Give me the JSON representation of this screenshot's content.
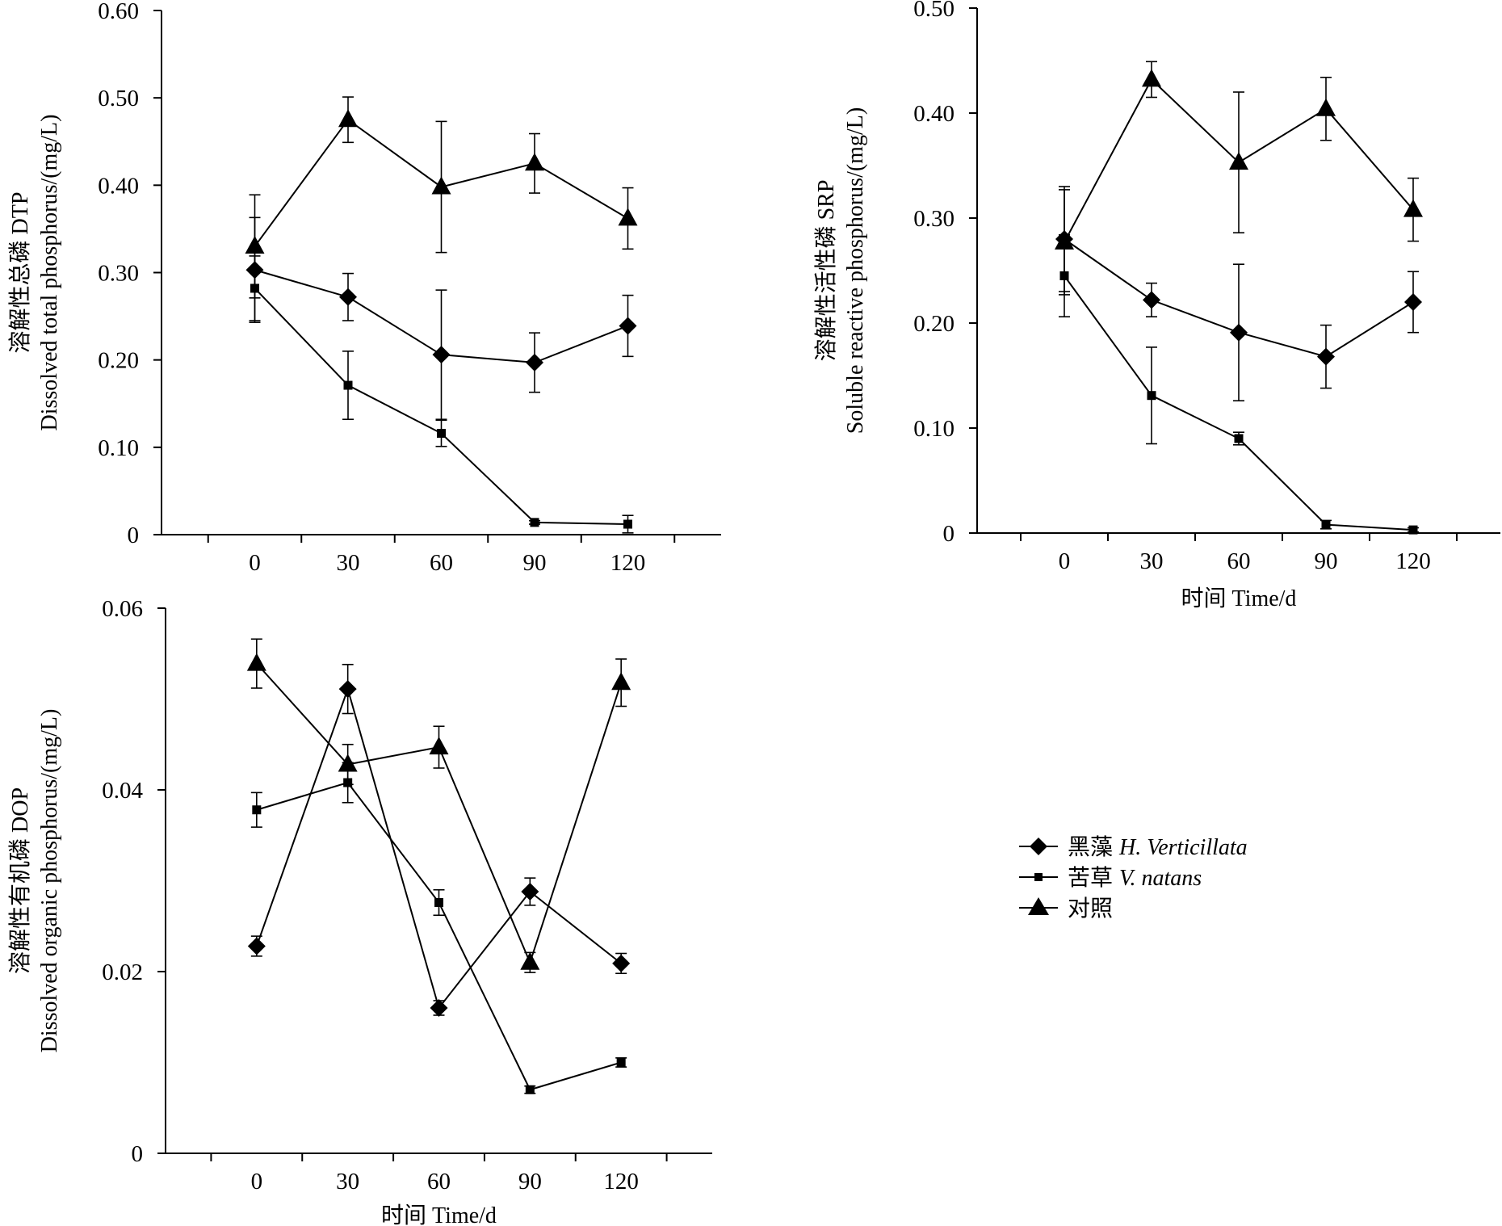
{
  "chart_data": [
    {
      "type": "line",
      "ylabel": "溶解性总磷 DTP",
      "ylabel2": "Dissolved total phosphorus/(mg/L)",
      "xlabel": "",
      "x": [
        0,
        30,
        60,
        90,
        120
      ],
      "xticks": [
        "0",
        "30",
        "60",
        "90",
        "120"
      ],
      "ylim": [
        0,
        0.6
      ],
      "yticks": [
        "0",
        "0.10",
        "0.20",
        "0.30",
        "0.40",
        "0.50",
        "0.60"
      ],
      "series": [
        {
          "name": "黑藻 H. Verticillata",
          "marker": "diamond",
          "values": [
            0.303,
            0.272,
            0.206,
            0.197,
            0.239
          ],
          "errors": [
            0.06,
            0.027,
            0.074,
            0.034,
            0.035
          ]
        },
        {
          "name": "苦草 V. natans",
          "marker": "square",
          "values": [
            0.282,
            0.171,
            0.116,
            0.014,
            0.012
          ],
          "errors": [
            0.037,
            0.039,
            0.015,
            0.002,
            0.01
          ]
        },
        {
          "name": "对照",
          "marker": "triangle",
          "values": [
            0.33,
            0.475,
            0.398,
            0.425,
            0.362
          ],
          "errors": [
            0.059,
            0.026,
            0.075,
            0.034,
            0.035
          ]
        }
      ]
    },
    {
      "type": "line",
      "ylabel": "溶解性活性磷 SRP",
      "ylabel2": "Soluble reactive phosphorus/(mg/L)",
      "xlabel": "时间 Time/d",
      "x": [
        0,
        30,
        60,
        90,
        120
      ],
      "xticks": [
        "0",
        "30",
        "60",
        "90",
        "120"
      ],
      "ylim": [
        0,
        0.5
      ],
      "yticks": [
        "0",
        "0.10",
        "0.20",
        "0.30",
        "0.40",
        "0.50"
      ],
      "series": [
        {
          "name": "黑藻 H. Verticillata",
          "marker": "diamond",
          "values": [
            0.28,
            0.222,
            0.191,
            0.168,
            0.22
          ],
          "errors": [
            0.05,
            0.016,
            0.065,
            0.03,
            0.029
          ]
        },
        {
          "name": "苦草 V. natans",
          "marker": "square",
          "values": [
            0.245,
            0.131,
            0.09,
            0.008,
            0.003
          ],
          "errors": [
            0.039,
            0.046,
            0.006,
            0.004,
            0.002
          ]
        },
        {
          "name": "对照",
          "marker": "triangle",
          "values": [
            0.277,
            0.432,
            0.353,
            0.404,
            0.308
          ],
          "errors": [
            0.05,
            0.017,
            0.067,
            0.03,
            0.03
          ]
        }
      ]
    },
    {
      "type": "line",
      "ylabel": "溶解性有机磷 DOP",
      "ylabel2": "Dissolved organic phosphorus/(mg/L)",
      "xlabel": "时间 Time/d",
      "x": [
        0,
        30,
        60,
        90,
        120
      ],
      "xticks": [
        "0",
        "30",
        "60",
        "90",
        "120"
      ],
      "ylim": [
        0,
        0.06
      ],
      "yticks": [
        "0",
        "0.02",
        "0.04",
        "0.06"
      ],
      "series": [
        {
          "name": "黑藻 H. Verticillata",
          "marker": "diamond",
          "values": [
            0.0228,
            0.0511,
            0.016,
            0.0288,
            0.0209
          ],
          "errors": [
            0.0011,
            0.0027,
            0.0008,
            0.0015,
            0.0011
          ]
        },
        {
          "name": "苦草 V. natans",
          "marker": "square",
          "values": [
            0.0378,
            0.0408,
            0.0276,
            0.007,
            0.01
          ],
          "errors": [
            0.0019,
            0.0022,
            0.0014,
            0.0004,
            0.0005
          ]
        },
        {
          "name": "对照",
          "marker": "triangle",
          "values": [
            0.0539,
            0.0428,
            0.0447,
            0.021,
            0.0518
          ],
          "errors": [
            0.0027,
            0.0022,
            0.0023,
            0.0011,
            0.0026
          ]
        }
      ]
    }
  ],
  "legend": {
    "placement": "right-middle",
    "items": [
      {
        "marker": "diamond",
        "label_cn": "黑藻",
        "label_latin": "H. Verticillata"
      },
      {
        "marker": "square",
        "label_cn": "苦草",
        "label_latin": "V. natans"
      },
      {
        "marker": "triangle",
        "label_cn": "对照",
        "label_latin": ""
      }
    ]
  }
}
